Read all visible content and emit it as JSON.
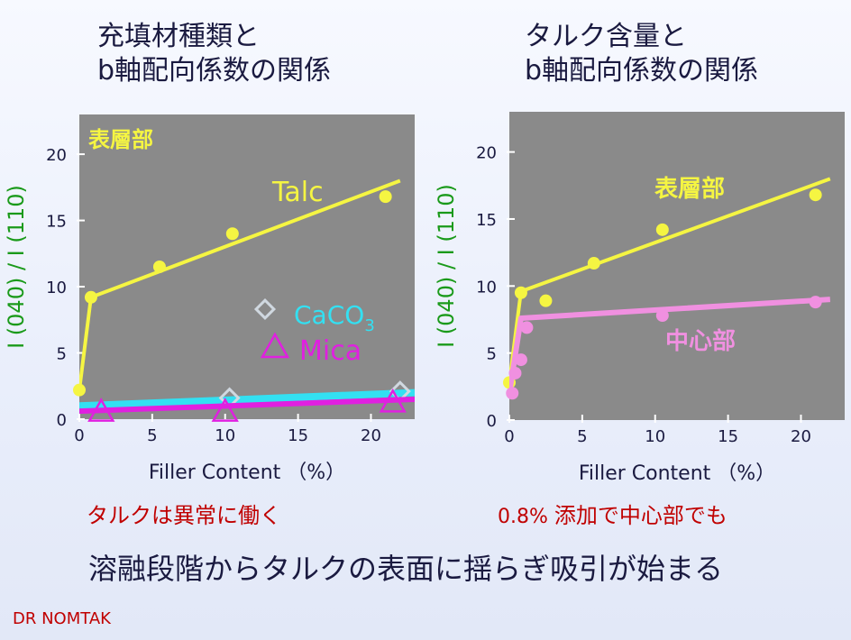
{
  "titles": {
    "left_line1": "充填材種類と",
    "left_line2": "b軸配向係数の関係",
    "right_line1": "タルク含量と",
    "right_line2": "b軸配向係数の関係"
  },
  "colors": {
    "yellow": "#f5f542",
    "cyan": "#33e0f2",
    "magenta": "#e020e0",
    "pink": "#f090e0",
    "ylabel": "#1a9a1a",
    "note": "#c00000",
    "plot_bg": "#8a8a8a"
  },
  "chart_data": [
    {
      "type": "line",
      "xlabel": "Filler Content （%）",
      "ylabel": "I (040) / I (110)",
      "xticks": [
        "0",
        "5",
        "10",
        "15",
        "20"
      ],
      "yticks": [
        "0",
        "5",
        "10",
        "15",
        "20"
      ],
      "xlim": [
        0,
        23
      ],
      "ylim": [
        0,
        23
      ],
      "region_label": "表層部",
      "series": [
        {
          "name": "Talc",
          "marker": "circle",
          "color": "#f5f542",
          "points": [
            [
              0,
              2.2
            ],
            [
              0.8,
              9.2
            ],
            [
              5.5,
              11.5
            ],
            [
              10.5,
              14.0
            ],
            [
              21,
              16.8
            ]
          ],
          "fit": [
            [
              0,
              2.2
            ],
            [
              0.8,
              9.2
            ],
            [
              22,
              18
            ]
          ]
        },
        {
          "name": "CaCO3",
          "marker": "diamond",
          "color": "#33e0f2",
          "points": [
            [
              10.3,
              1.6
            ],
            [
              22,
              2.1
            ]
          ],
          "fit": [
            [
              0,
              1.0
            ],
            [
              23,
              2.0
            ]
          ]
        },
        {
          "name": "Mica",
          "marker": "triangle",
          "color": "#e020e0",
          "points": [
            [
              1.5,
              0.5
            ],
            [
              10,
              0.5
            ],
            [
              21.5,
              1.2
            ]
          ],
          "fit": [
            [
              0,
              0.6
            ],
            [
              23,
              1.5
            ]
          ]
        }
      ],
      "legend": [
        {
          "label_main": "CaCO",
          "label_sub": "3",
          "marker": "diamond"
        },
        {
          "label_main": "Mica",
          "marker": "triangle"
        }
      ]
    },
    {
      "type": "line",
      "xlabel": "Filler Content （%）",
      "ylabel": "I (040) / I (110)",
      "xticks": [
        "0",
        "5",
        "10",
        "15",
        "20"
      ],
      "yticks": [
        "0",
        "5",
        "10",
        "15",
        "20"
      ],
      "xlim": [
        0,
        23
      ],
      "ylim": [
        0,
        23
      ],
      "series": [
        {
          "name": "表層部",
          "marker": "circle",
          "color": "#f5f542",
          "points": [
            [
              0,
              2.8
            ],
            [
              0.8,
              9.5
            ],
            [
              2.5,
              8.9
            ],
            [
              5.8,
              11.7
            ],
            [
              10.5,
              14.2
            ],
            [
              21,
              16.8
            ]
          ],
          "fit": [
            [
              0,
              2.8
            ],
            [
              0.8,
              9.6
            ],
            [
              22,
              18
            ]
          ]
        },
        {
          "name": "中心部",
          "marker": "circle",
          "color": "#f090e0",
          "points": [
            [
              0.2,
              2.0
            ],
            [
              0.4,
              3.5
            ],
            [
              0.8,
              4.5
            ],
            [
              1.2,
              6.9
            ],
            [
              10.5,
              7.8
            ],
            [
              21,
              8.8
            ]
          ],
          "fit": [
            [
              0,
              2.0
            ],
            [
              0.8,
              7.6
            ],
            [
              22,
              9.0
            ]
          ]
        }
      ]
    }
  ],
  "notes": {
    "left": "タルクは異常に働く",
    "right_prefix": "0.8% ",
    "right_text": "添加で中心部でも"
  },
  "conclusion": "溶融段階からタルクの表面に揺らぎ吸引が始まる",
  "credit": "DR NOMTAK"
}
